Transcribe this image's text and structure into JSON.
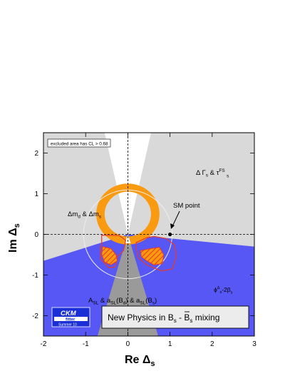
{
  "chart_data": {
    "type": "contour",
    "title": "",
    "xlabel": {
      "main": "Re Δ",
      "sub": "s"
    },
    "ylabel": {
      "main": "Im Δ",
      "sub": "s"
    },
    "xlim": [
      -2,
      3
    ],
    "ylim": [
      -2.5,
      2.5
    ],
    "xticks": [
      "-2",
      "-1",
      "0",
      "1",
      "2",
      "3"
    ],
    "yticks": [
      "-2",
      "-1",
      "0",
      "1",
      "2"
    ],
    "grid": false,
    "colors": {
      "light_gray": "#d9d9d9",
      "dark_gray": "#9a9a9a",
      "blue": "#5757f5",
      "orange": "#f99a10",
      "red": "#e8392a",
      "dot": "#000000",
      "box": "#ececec"
    },
    "regions": [
      {
        "name": "Δm_d & Δm_s",
        "shape": "annulus",
        "center": [
          0,
          0.5
        ],
        "inner_radius": 0.55,
        "outer_radius": 0.75
      },
      {
        "name": "ϕΔs - 2βs",
        "shape": "cone",
        "apex": [
          0,
          0
        ],
        "direction": "below"
      },
      {
        "name": "ΔΓs & τFS",
        "shape": "cone",
        "apex": [
          0,
          0
        ],
        "direction": "sides"
      },
      {
        "name": "A_SL & a_SL(B_d) & a_SL(B_s)",
        "shape": "wedge",
        "apex": [
          0,
          0
        ],
        "direction": "down"
      }
    ],
    "sm_point": {
      "x": 1.0,
      "y": 0.0
    },
    "annotations": {
      "excluded": "excluded area has CL > 0.68",
      "dm_main": "Δm",
      "dm_sub1": "d",
      "dm_and": " & Δm",
      "dm_sub2": "s",
      "dg_main": "Δ Γ",
      "dg_sub1": "s",
      "dg_and": " & τ",
      "dg_sub2": "FS",
      "dg_sup2": "s",
      "phi_main": "ϕ",
      "phi_sup": "Δ",
      "phi_sub": "s",
      "phi_rest": "-2β",
      "phi_sub2": "s",
      "asl_a": "A",
      "asl_a_sub": "SL",
      "asl_b": " & a",
      "asl_b_sub": "SL",
      "asl_c": "(B",
      "asl_c_sub": "d",
      "asl_d": ") & a",
      "asl_d_sub": "SL",
      "asl_e": "(B",
      "asl_e_sub": "s",
      "asl_f": ")",
      "sm_label": "SM point"
    },
    "legend_box": {
      "t1": "New Physics in B",
      "s1": "s",
      "t2": " - ",
      "t3": "B",
      "s2": "s",
      "t4": " mixing",
      "placement": "bottom-right"
    },
    "logo": {
      "line1": "CKM",
      "line2": "fitter",
      "line3": "Summer 10"
    }
  }
}
